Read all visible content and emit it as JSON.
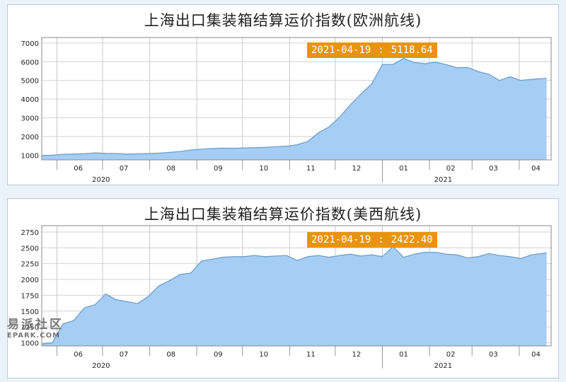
{
  "chart_data": [
    {
      "type": "area",
      "title": "上海出口集装箱结算运价指数(欧洲航线)",
      "ylim": [
        750,
        7300
      ],
      "yticks": [
        1000,
        2000,
        3000,
        4000,
        5000,
        6000,
        7000
      ],
      "month_labels": [
        "06",
        "07",
        "08",
        "09",
        "10",
        "11",
        "12",
        "01",
        "02",
        "03",
        "04"
      ],
      "year_labels": [
        "2020",
        "2021"
      ],
      "grid": true,
      "tooltip": {
        "date": "2021-04-19",
        "separator": ":",
        "value": "5118.64"
      },
      "fill_color": "#a6cdf3",
      "line_color": "#6e9fcc",
      "x": [
        "2020-05-22",
        "2020-05-29",
        "2020-06-05",
        "2020-06-12",
        "2020-06-19",
        "2020-06-26",
        "2020-07-03",
        "2020-07-10",
        "2020-07-17",
        "2020-07-24",
        "2020-07-31",
        "2020-08-07",
        "2020-08-14",
        "2020-08-21",
        "2020-08-28",
        "2020-09-04",
        "2020-09-11",
        "2020-09-18",
        "2020-09-25",
        "2020-10-02",
        "2020-10-09",
        "2020-10-16",
        "2020-10-23",
        "2020-10-30",
        "2020-11-06",
        "2020-11-13",
        "2020-11-20",
        "2020-11-27",
        "2020-12-04",
        "2020-12-11",
        "2020-12-18",
        "2020-12-25",
        "2021-01-01",
        "2021-01-08",
        "2021-01-15",
        "2021-01-22",
        "2021-01-29",
        "2021-02-05",
        "2021-02-12",
        "2021-02-19",
        "2021-02-26",
        "2021-03-05",
        "2021-03-12",
        "2021-03-19",
        "2021-03-26",
        "2021-04-02",
        "2021-04-09",
        "2021-04-16",
        "2021-04-19"
      ],
      "values": [
        980,
        1000,
        1050,
        1060,
        1080,
        1120,
        1100,
        1090,
        1060,
        1070,
        1090,
        1110,
        1150,
        1200,
        1280,
        1320,
        1360,
        1380,
        1370,
        1390,
        1400,
        1420,
        1450,
        1480,
        1560,
        1740,
        2200,
        2520,
        3050,
        3700,
        4280,
        4820,
        5850,
        5860,
        6180,
        5960,
        5900,
        5980,
        5850,
        5680,
        5700,
        5480,
        5330,
        5000,
        5200,
        5000,
        5060,
        5100,
        5118.64
      ]
    },
    {
      "type": "area",
      "title": "上海出口集装箱结算运价指数(美西航线)",
      "ylim": [
        950,
        2850
      ],
      "yticks": [
        1000,
        1250,
        1500,
        1750,
        2000,
        2250,
        2500,
        2750
      ],
      "month_labels": [
        "06",
        "07",
        "08",
        "09",
        "10",
        "11",
        "12",
        "01",
        "02",
        "03",
        "04"
      ],
      "year_labels": [
        "2020",
        "2021"
      ],
      "grid": true,
      "tooltip": {
        "date": "2021-04-19",
        "separator": ":",
        "value": "2422.40"
      },
      "fill_color": "#a6cdf3",
      "line_color": "#6e9fcc",
      "x": [
        "2020-05-22",
        "2020-05-29",
        "2020-06-05",
        "2020-06-12",
        "2020-06-19",
        "2020-06-26",
        "2020-07-03",
        "2020-07-10",
        "2020-07-17",
        "2020-07-24",
        "2020-07-31",
        "2020-08-07",
        "2020-08-14",
        "2020-08-21",
        "2020-08-28",
        "2020-09-04",
        "2020-09-11",
        "2020-09-18",
        "2020-09-25",
        "2020-10-02",
        "2020-10-09",
        "2020-10-16",
        "2020-10-23",
        "2020-10-30",
        "2020-11-06",
        "2020-11-13",
        "2020-11-20",
        "2020-11-27",
        "2020-12-04",
        "2020-12-11",
        "2020-12-18",
        "2020-12-25",
        "2021-01-01",
        "2021-01-08",
        "2021-01-15",
        "2021-01-22",
        "2021-01-29",
        "2021-02-05",
        "2021-02-12",
        "2021-02-19",
        "2021-02-26",
        "2021-03-05",
        "2021-03-12",
        "2021-03-19",
        "2021-03-26",
        "2021-04-02",
        "2021-04-09",
        "2021-04-16",
        "2021-04-19"
      ],
      "values": [
        980,
        1000,
        1300,
        1350,
        1550,
        1600,
        1770,
        1680,
        1650,
        1620,
        1730,
        1900,
        1980,
        2080,
        2100,
        2290,
        2320,
        2350,
        2360,
        2360,
        2380,
        2360,
        2370,
        2380,
        2300,
        2360,
        2380,
        2350,
        2380,
        2400,
        2370,
        2390,
        2360,
        2520,
        2350,
        2400,
        2430,
        2430,
        2400,
        2390,
        2340,
        2360,
        2410,
        2380,
        2360,
        2330,
        2390,
        2410,
        2422.4
      ]
    }
  ],
  "watermark": {
    "cn": "易派社区",
    "en": "EPARK.COM"
  }
}
